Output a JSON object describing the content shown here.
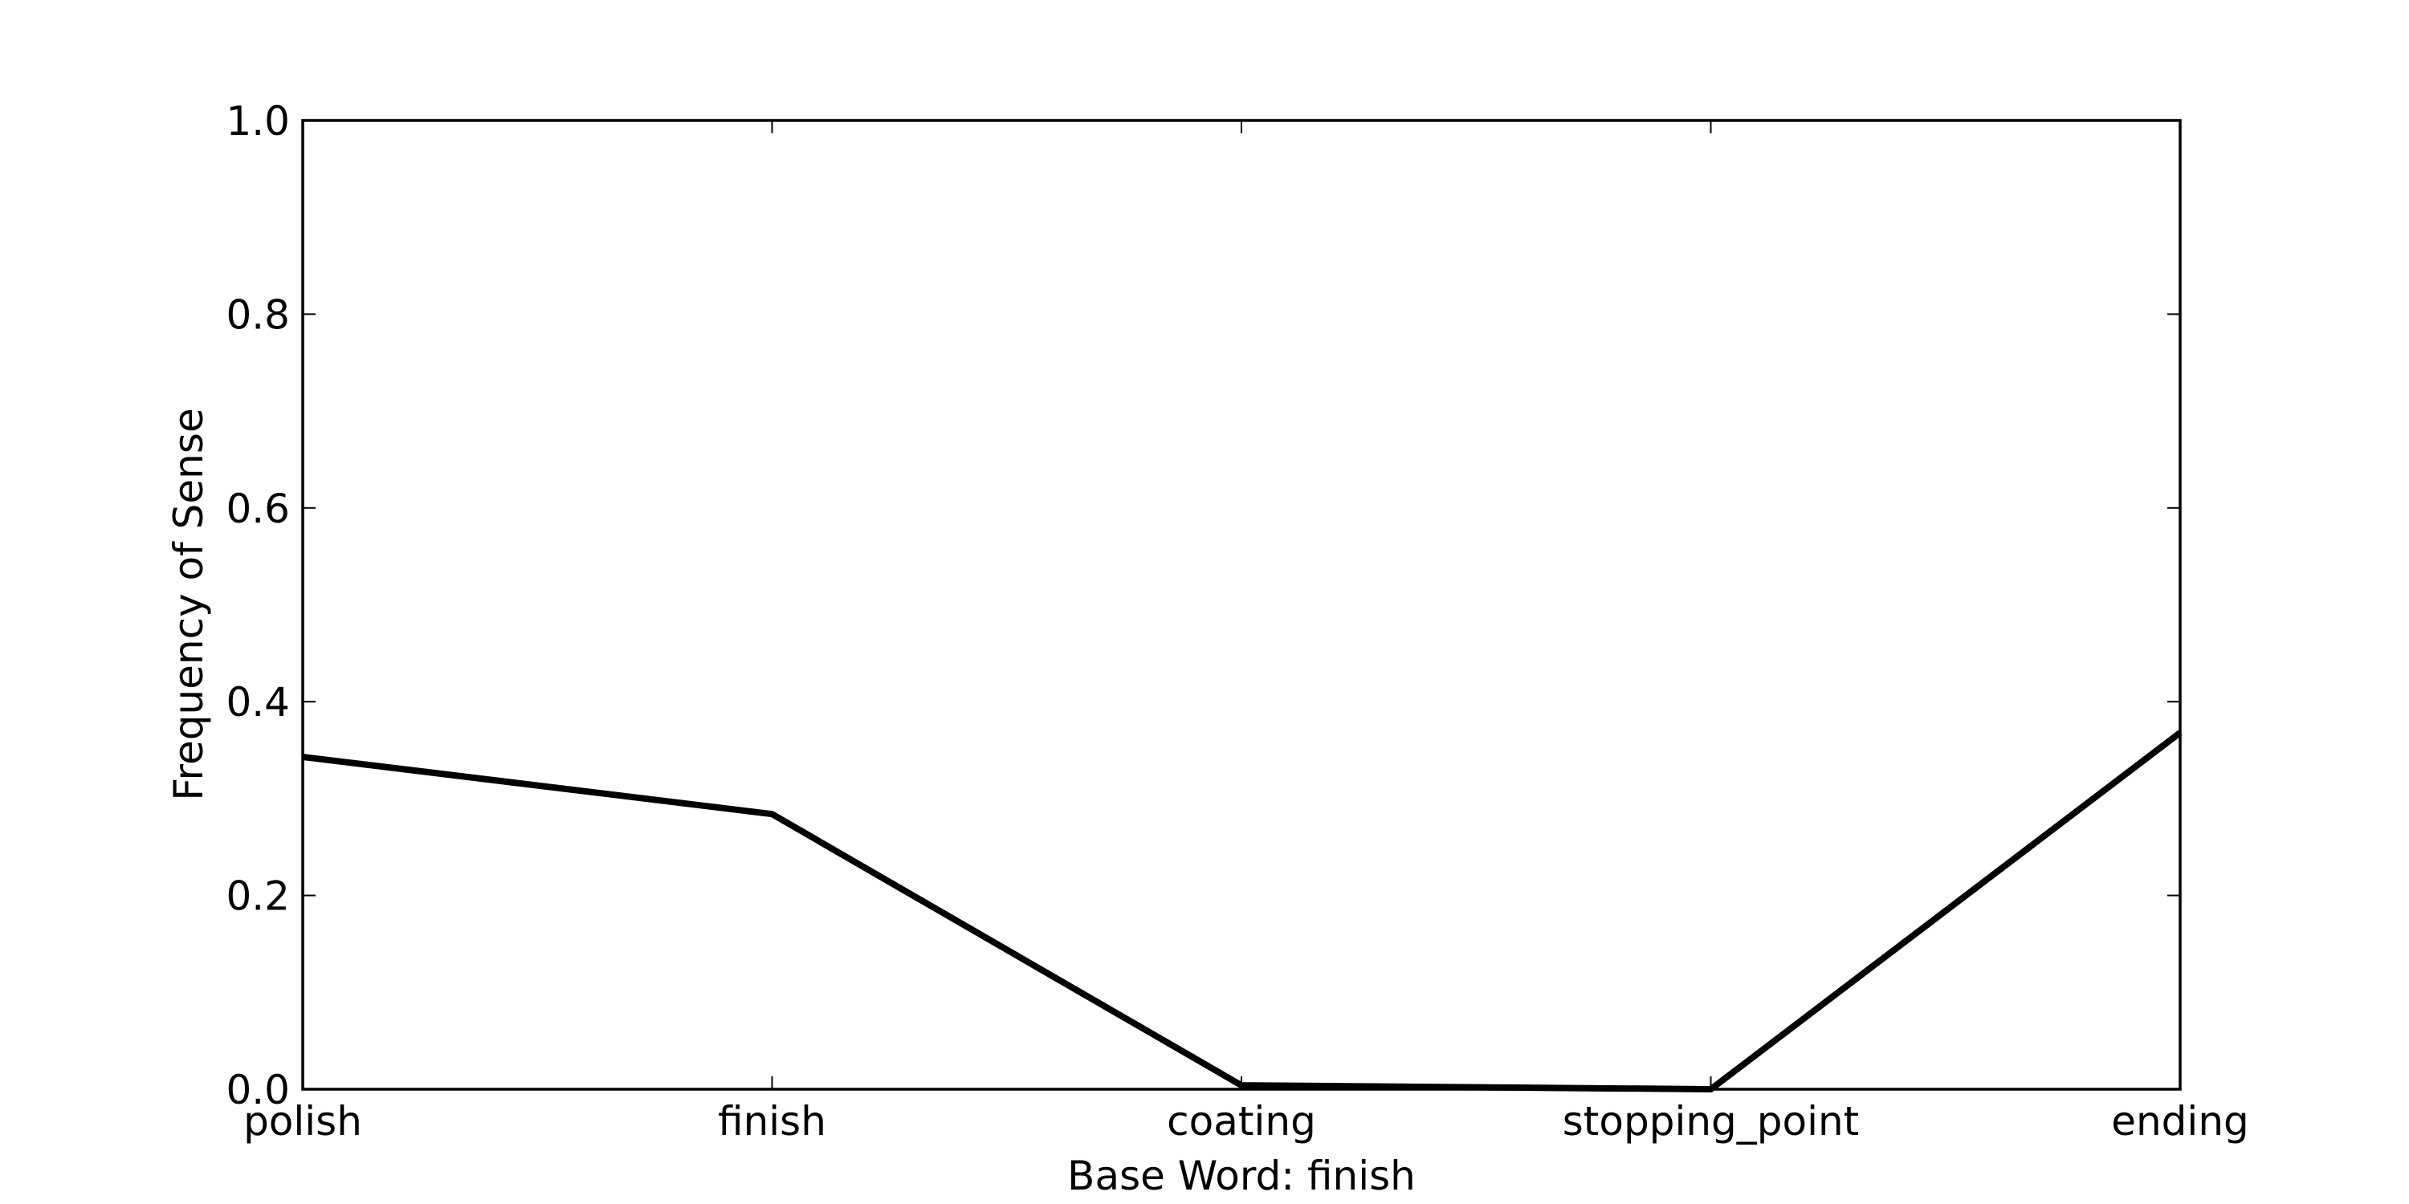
{
  "chart_data": {
    "type": "line",
    "categories": [
      "polish",
      "finish",
      "coating",
      "stopping_point",
      "ending"
    ],
    "values": [
      0.343,
      0.284,
      0.004,
      0.0,
      0.368
    ],
    "xlabel": "Base Word: finish",
    "ylabel": "Frequency of Sense",
    "ylim": [
      0.0,
      1.0
    ],
    "yticks": [
      "0.0",
      "0.2",
      "0.4",
      "0.6",
      "0.8",
      "1.0"
    ],
    "line_color": "#000000",
    "grid": false
  }
}
